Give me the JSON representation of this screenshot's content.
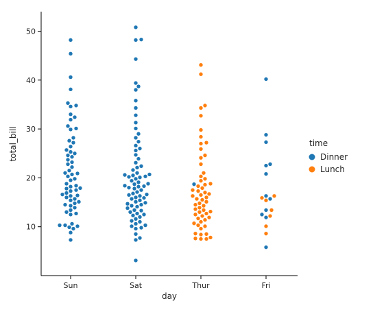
{
  "chart_data": {
    "type": "scatter",
    "subtype": "swarm",
    "xlabel": "day",
    "ylabel": "total_bill",
    "categories": [
      "Sun",
      "Sat",
      "Thur",
      "Fri"
    ],
    "ylim": [
      0,
      54
    ],
    "yticks": [
      10,
      20,
      30,
      40,
      50
    ],
    "legend": {
      "title": "time",
      "position": "right",
      "entries": [
        {
          "label": "Dinner",
          "color": "#1f77b4"
        },
        {
          "label": "Lunch",
          "color": "#ff7f0e"
        }
      ]
    },
    "series": [
      {
        "name": "Dinner",
        "color": "#1f77b4",
        "points": {
          "Sun": [
            48.2,
            45.4,
            40.6,
            38.1,
            35.3,
            34.8,
            34.6,
            33.0,
            32.4,
            31.9,
            30.6,
            30.1,
            29.9,
            28.2,
            27.6,
            27.2,
            26.4,
            25.7,
            25.3,
            25.0,
            24.6,
            24.3,
            23.7,
            23.2,
            22.8,
            22.2,
            21.5,
            21.0,
            20.9,
            20.7,
            20.3,
            19.8,
            19.5,
            18.8,
            18.4,
            18.2,
            17.9,
            17.8,
            17.5,
            17.3,
            16.9,
            16.6,
            16.4,
            16.3,
            16.0,
            15.7,
            15.4,
            15.1,
            14.8,
            14.5,
            14.3,
            13.9,
            13.4,
            13.0,
            12.7,
            12.5,
            10.6,
            10.3,
            10.3,
            10.1,
            9.9,
            9.6,
            8.8,
            7.3
          ],
          "Sat": [
            50.8,
            48.3,
            48.2,
            44.3,
            39.4,
            38.7,
            38.0,
            35.8,
            34.3,
            32.8,
            31.3,
            30.1,
            29.0,
            28.2,
            27.4,
            26.6,
            26.0,
            25.6,
            24.7,
            23.9,
            23.1,
            22.4,
            22.1,
            21.6,
            21.0,
            20.7,
            20.6,
            20.5,
            20.3,
            20.2,
            20.1,
            19.8,
            19.4,
            19.1,
            18.8,
            18.7,
            18.4,
            18.3,
            18.2,
            18.0,
            17.8,
            17.5,
            17.1,
            16.8,
            16.6,
            16.5,
            16.3,
            16.0,
            15.9,
            15.7,
            15.4,
            15.1,
            14.9,
            14.7,
            14.5,
            14.3,
            14.1,
            13.8,
            13.4,
            13.3,
            13.0,
            12.7,
            12.5,
            12.3,
            12.0,
            11.6,
            11.2,
            11.0,
            10.6,
            10.3,
            10.1,
            9.8,
            9.6,
            8.5,
            7.7,
            7.3,
            3.1
          ],
          "Thur": [
            18.7
          ],
          "Fri": [
            40.2,
            28.8,
            27.3,
            22.8,
            22.5,
            20.8,
            16.3,
            15.7,
            13.4,
            12.5,
            11.9,
            5.8
          ]
        }
      },
      {
        "name": "Lunch",
        "color": "#ff7f0e",
        "points": {
          "Sun": [],
          "Sat": [],
          "Thur": [
            43.1,
            41.2,
            34.8,
            34.3,
            32.7,
            29.8,
            28.4,
            27.2,
            27.0,
            25.9,
            24.6,
            24.1,
            22.8,
            21.0,
            20.3,
            19.8,
            19.4,
            18.8,
            18.6,
            18.3,
            17.9,
            17.5,
            17.3,
            17.0,
            16.7,
            16.5,
            16.3,
            16.0,
            15.7,
            15.5,
            15.1,
            14.8,
            14.5,
            14.3,
            13.9,
            13.6,
            13.4,
            13.1,
            13.0,
            12.7,
            12.5,
            12.2,
            11.9,
            11.7,
            11.4,
            11.0,
            10.7,
            10.3,
            10.1,
            9.6,
            8.6,
            8.5,
            8.4,
            7.8,
            7.6,
            7.5,
            7.5
          ],
          "Fri": [
            16.3,
            15.9,
            15.4,
            13.4,
            12.2,
            10.1,
            8.6
          ]
        }
      }
    ]
  }
}
